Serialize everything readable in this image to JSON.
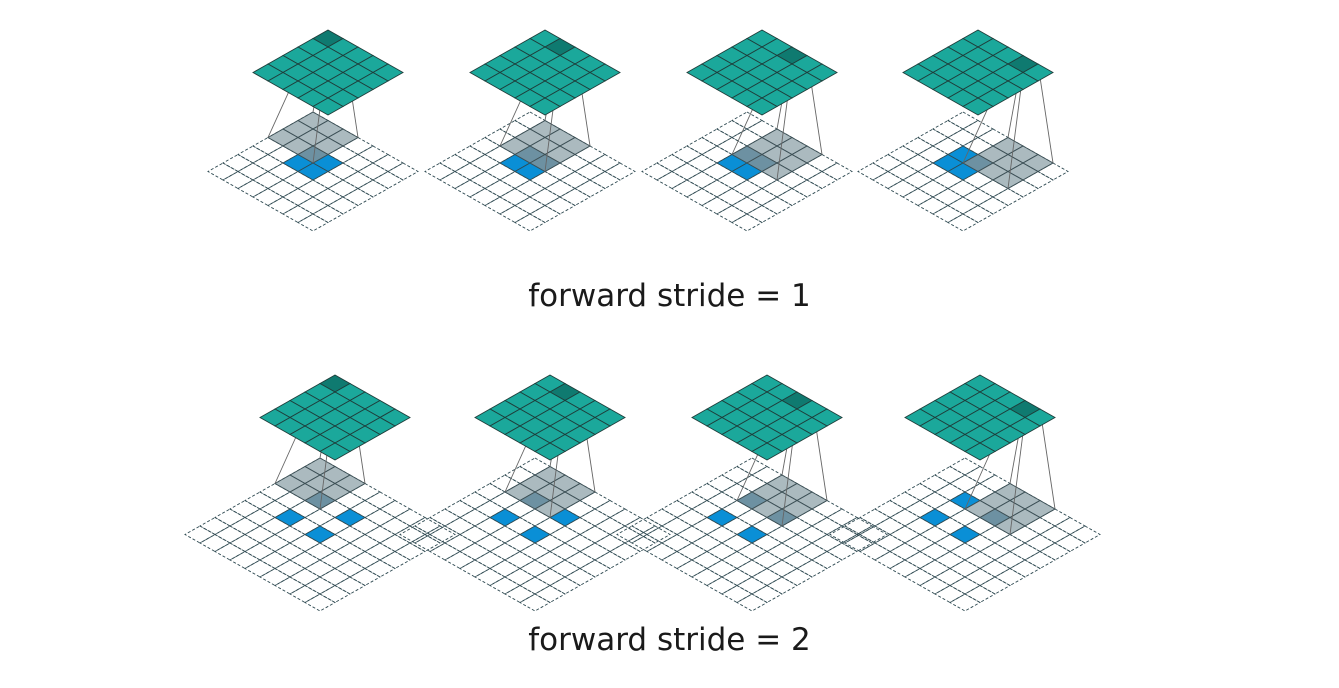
{
  "figure": {
    "rows": [
      {
        "caption": "forward stride = 1",
        "stride": 1,
        "input_grid": 5,
        "output_grid": 4,
        "kernel": 3,
        "padding": 2
      },
      {
        "caption": "forward stride = 2",
        "stride": 2,
        "input_grid": 5,
        "output_grid": 4,
        "kernel": 3,
        "padding": 2
      }
    ],
    "colors": {
      "output": "#1ba89b",
      "output_highlight": "#0f7a70",
      "input_active": "#0a8fd6",
      "input_active_dark": "#0b5e8c",
      "kernel": "#8fa3aa",
      "grid_line": "#2f4a52",
      "projection_line": "#666666"
    }
  }
}
